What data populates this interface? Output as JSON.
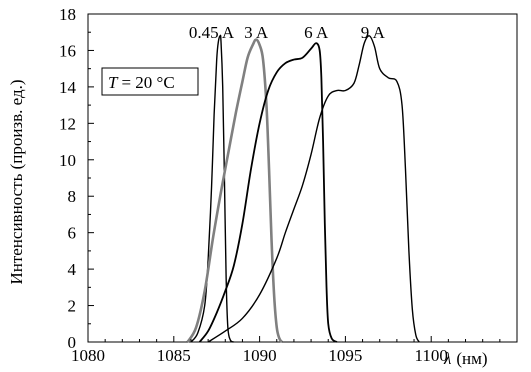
{
  "chart_data": {
    "type": "line",
    "xlabel_symbol": "λ",
    "xlabel_unit": "(нм)",
    "ylabel": "Интенсивность (произв. ед.)",
    "annotation": {
      "label": "T",
      "equals": "= 20 °C"
    },
    "xlim": [
      1080,
      1105
    ],
    "ylim": [
      0,
      18
    ],
    "xticks": [
      1080,
      1085,
      1090,
      1095,
      1100
    ],
    "yticks": [
      0,
      2,
      4,
      6,
      8,
      10,
      12,
      14,
      16,
      18
    ],
    "grid": false,
    "legend": "none",
    "series": [
      {
        "name": "0.45 A",
        "color": "#000000",
        "x": [
          1086.0,
          1086.4,
          1086.8,
          1087.0,
          1087.2,
          1087.35,
          1087.5,
          1087.6,
          1087.7,
          1087.75,
          1087.85,
          1087.95,
          1088.05,
          1088.15,
          1088.3,
          1088.5
        ],
        "y": [
          0.0,
          0.5,
          2.0,
          4.5,
          8.5,
          12.5,
          15.5,
          16.5,
          16.8,
          16.5,
          14.0,
          9.0,
          3.5,
          0.8,
          0.1,
          0.0
        ]
      },
      {
        "name": "3 A",
        "color": "#808080",
        "x": [
          1085.8,
          1086.3,
          1086.8,
          1087.3,
          1087.8,
          1088.2,
          1088.6,
          1089.0,
          1089.3,
          1089.6,
          1089.8,
          1090.0,
          1090.2,
          1090.4,
          1090.55,
          1090.7,
          1090.85,
          1091.0,
          1091.15,
          1091.3
        ],
        "y": [
          0.0,
          0.8,
          2.8,
          5.8,
          8.5,
          10.5,
          12.5,
          14.3,
          15.6,
          16.3,
          16.6,
          16.3,
          15.5,
          13.0,
          9.5,
          5.5,
          2.5,
          0.8,
          0.2,
          0.0
        ]
      },
      {
        "name": "6 A",
        "color": "#000000",
        "x": [
          1086.5,
          1087.0,
          1087.5,
          1088.0,
          1088.5,
          1089.0,
          1089.5,
          1090.0,
          1090.5,
          1091.0,
          1091.5,
          1092.0,
          1092.5,
          1093.0,
          1093.3,
          1093.5,
          1093.6,
          1093.7,
          1093.8,
          1093.9,
          1094.0,
          1094.2,
          1094.5
        ],
        "y": [
          0.0,
          0.6,
          1.6,
          2.8,
          4.2,
          6.5,
          9.5,
          12.0,
          13.8,
          14.8,
          15.3,
          15.5,
          15.6,
          16.1,
          16.4,
          16.0,
          14.5,
          11.0,
          6.5,
          3.0,
          1.0,
          0.2,
          0.0
        ]
      },
      {
        "name": "9 A",
        "color": "#000000",
        "x": [
          1087.0,
          1088.0,
          1089.0,
          1090.0,
          1091.0,
          1091.5,
          1092.0,
          1092.5,
          1093.0,
          1093.5,
          1094.0,
          1094.5,
          1095.0,
          1095.5,
          1095.8,
          1096.1,
          1096.4,
          1096.7,
          1097.0,
          1097.5,
          1098.0,
          1098.3,
          1098.5,
          1098.7,
          1098.9,
          1099.1,
          1099.3
        ],
        "y": [
          0.0,
          0.6,
          1.3,
          2.6,
          4.6,
          6.0,
          7.3,
          8.6,
          10.3,
          12.3,
          13.5,
          13.8,
          13.8,
          14.2,
          15.2,
          16.4,
          16.8,
          16.2,
          15.0,
          14.5,
          14.3,
          13.0,
          9.5,
          5.0,
          1.8,
          0.4,
          0.0
        ]
      }
    ]
  }
}
